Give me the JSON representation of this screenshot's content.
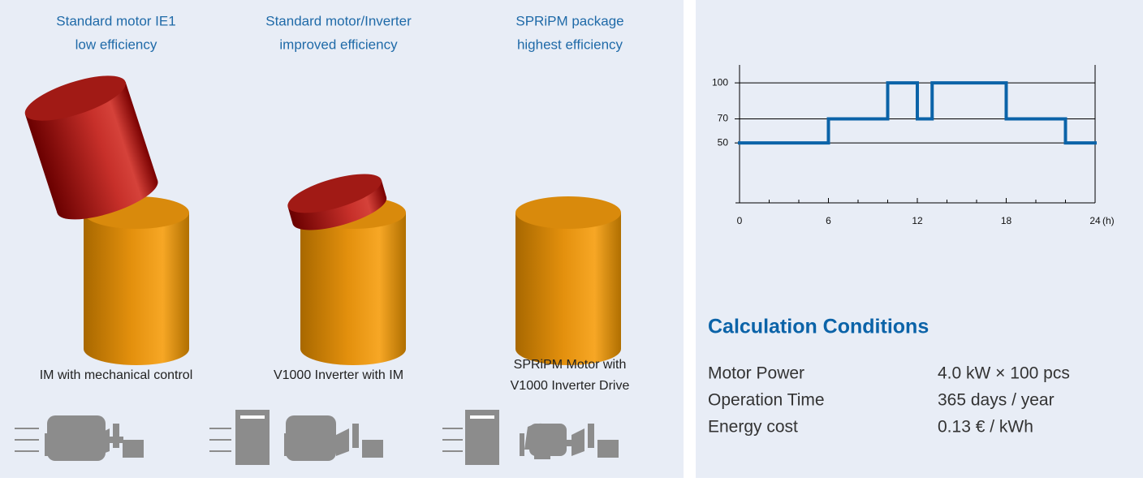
{
  "columns": [
    {
      "heading": [
        "Standard motor IE1",
        "low efficiency"
      ],
      "caption": [
        "IM with mechanical control"
      ]
    },
    {
      "heading": [
        "Standard motor/Inverter",
        "improved efficiency"
      ],
      "caption": [
        "V1000 Inverter with IM"
      ]
    },
    {
      "heading": [
        "SPRiPM package",
        "highest efficiency"
      ],
      "caption": [
        "SPRiPM Motor with",
        "V1000 Inverter Drive"
      ]
    }
  ],
  "chart_data": {
    "type": "step",
    "x": [
      0,
      6,
      10,
      12,
      13,
      18,
      22
    ],
    "values": [
      50,
      70,
      100,
      70,
      100,
      70,
      50
    ],
    "color": "#0b63a8",
    "xlim": [
      0,
      24
    ],
    "xticks": [
      0,
      6,
      12,
      18,
      24
    ],
    "xminorticks": [
      2,
      4,
      8,
      10,
      14,
      16,
      20,
      22
    ],
    "xlabel": "(h)",
    "ylim": [
      0,
      115
    ],
    "yticks": [
      50,
      70,
      100
    ],
    "grid": true
  },
  "conditions": {
    "title": "Calculation Conditions",
    "rows": [
      [
        "Motor Power",
        "4.0 kW × 100 pcs"
      ],
      [
        "Operation Time",
        "365 days / year"
      ],
      [
        "Energy cost",
        "0.13 € / kWh"
      ]
    ]
  }
}
